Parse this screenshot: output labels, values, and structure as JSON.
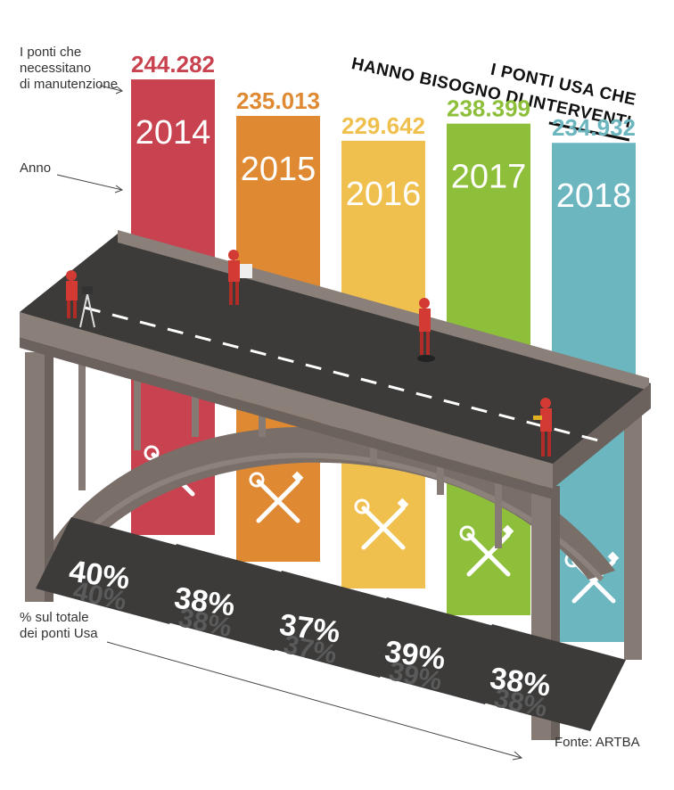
{
  "title": {
    "line1": "I PONTI USA CHE",
    "line2": "HANNO BISOGNO DI INTERVENTI"
  },
  "labels": {
    "maintenance": "I ponti che\nnecessitano\ndi manutenzione",
    "year": "Anno",
    "percent": "% sul totale\ndei ponti Usa"
  },
  "source": "Fonte: ARTBA",
  "chart_data": {
    "type": "bar",
    "title": "I PONTI USA CHE HANNO BISOGNO DI INTERVENTI",
    "categories": [
      "2014",
      "2015",
      "2016",
      "2017",
      "2018"
    ],
    "values": [
      244282,
      235013,
      229642,
      238399,
      234932
    ],
    "value_labels": [
      "244.282",
      "235.013",
      "229.642",
      "238.399",
      "234.932"
    ],
    "percent_labels": [
      "40%",
      "38%",
      "37%",
      "39%",
      "38%"
    ],
    "percent_values": [
      40,
      38,
      37,
      39,
      38
    ],
    "colors": [
      "#c8434f",
      "#df8a33",
      "#f0c04f",
      "#8ebf3b",
      "#6cb6bf"
    ],
    "xlabel": "",
    "ylabel": "",
    "source": "Fonte: ARTBA"
  }
}
